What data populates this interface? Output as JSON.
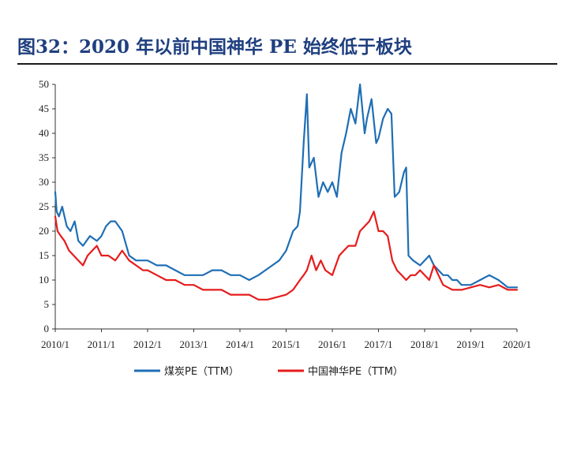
{
  "title": "图32：2020 年以前中国神华 PE 始终低于板块",
  "chart_data": {
    "type": "line",
    "title": "图32：2020 年以前中国神华 PE 始终低于板块",
    "xlabel": "",
    "ylabel": "",
    "ylim": [
      0,
      50
    ],
    "xlim": [
      2010.0,
      2020.0
    ],
    "yticks": [
      "0",
      "5",
      "10",
      "15",
      "20",
      "25",
      "30",
      "35",
      "40",
      "45",
      "50"
    ],
    "xticks": [
      "2010/1",
      "2011/1",
      "2012/1",
      "2013/1",
      "2014/1",
      "2015/1",
      "2016/1",
      "2017/1",
      "2018/1",
      "2019/1",
      "2020/1"
    ],
    "grid": false,
    "legend_position": "bottom",
    "series": [
      {
        "name": "煤炭PE（TTM）",
        "color": "#1f6eb4",
        "x": [
          2010.0,
          2010.03,
          2010.08,
          2010.15,
          2010.25,
          2010.33,
          2010.42,
          2010.5,
          2010.6,
          2010.75,
          2010.9,
          2011.0,
          2011.1,
          2011.2,
          2011.3,
          2011.45,
          2011.6,
          2011.75,
          2011.9,
          2012.0,
          2012.2,
          2012.4,
          2012.6,
          2012.8,
          2013.0,
          2013.2,
          2013.4,
          2013.6,
          2013.8,
          2014.0,
          2014.2,
          2014.4,
          2014.55,
          2014.7,
          2014.85,
          2015.0,
          2015.15,
          2015.25,
          2015.3,
          2015.38,
          2015.45,
          2015.5,
          2015.6,
          2015.7,
          2015.8,
          2015.9,
          2016.0,
          2016.1,
          2016.2,
          2016.3,
          2016.4,
          2016.5,
          2016.6,
          2016.7,
          2016.75,
          2016.85,
          2016.95,
          2017.0,
          2017.1,
          2017.2,
          2017.28,
          2017.35,
          2017.45,
          2017.55,
          2017.6,
          2017.65,
          2017.75,
          2017.9,
          2018.0,
          2018.1,
          2018.2,
          2018.3,
          2018.4,
          2018.5,
          2018.6,
          2018.7,
          2018.8,
          2018.9,
          2019.0,
          2019.2,
          2019.4,
          2019.6,
          2019.8,
          2020.0
        ],
        "values": [
          28,
          24,
          23,
          25,
          21,
          20,
          22,
          18,
          17,
          19,
          18,
          19,
          21,
          22,
          22,
          20,
          15,
          14,
          14,
          14,
          13,
          13,
          12,
          11,
          11,
          11,
          12,
          12,
          11,
          11,
          10,
          11,
          12,
          13,
          14,
          16,
          20,
          21,
          24,
          38,
          48,
          33,
          35,
          27,
          30,
          28,
          30,
          27,
          36,
          40,
          45,
          42,
          50,
          40,
          43,
          47,
          38,
          39,
          43,
          45,
          44,
          27,
          28,
          32,
          33,
          15,
          14,
          13,
          14,
          15,
          13,
          12,
          11,
          11,
          10,
          10,
          9,
          9,
          9,
          10,
          11,
          10,
          8.5,
          8.5
        ]
      },
      {
        "name": "中国神华PE（TTM）",
        "color": "#e61c1c",
        "x": [
          2010.0,
          2010.05,
          2010.12,
          2010.2,
          2010.3,
          2010.4,
          2010.5,
          2010.6,
          2010.7,
          2010.8,
          2010.9,
          2011.0,
          2011.15,
          2011.3,
          2011.45,
          2011.6,
          2011.75,
          2011.9,
          2012.0,
          2012.2,
          2012.4,
          2012.6,
          2012.8,
          2013.0,
          2013.2,
          2013.4,
          2013.6,
          2013.8,
          2014.0,
          2014.2,
          2014.4,
          2014.6,
          2014.8,
          2015.0,
          2015.15,
          2015.3,
          2015.38,
          2015.45,
          2015.55,
          2015.65,
          2015.75,
          2015.85,
          2016.0,
          2016.15,
          2016.25,
          2016.35,
          2016.5,
          2016.6,
          2016.7,
          2016.8,
          2016.9,
          2017.0,
          2017.1,
          2017.2,
          2017.3,
          2017.4,
          2017.5,
          2017.6,
          2017.7,
          2017.8,
          2017.9,
          2018.0,
          2018.1,
          2018.2,
          2018.3,
          2018.4,
          2018.5,
          2018.6,
          2018.8,
          2019.0,
          2019.2,
          2019.4,
          2019.6,
          2019.8,
          2020.0
        ],
        "values": [
          23,
          20,
          19,
          18,
          16,
          15,
          14,
          13,
          15,
          16,
          17,
          15,
          15,
          14,
          16,
          14,
          13,
          12,
          12,
          11,
          10,
          10,
          9,
          9,
          8,
          8,
          8,
          7,
          7,
          7,
          6,
          6,
          6.5,
          7,
          8,
          10,
          11,
          12,
          15,
          12,
          14,
          12,
          11,
          15,
          16,
          17,
          17,
          20,
          21,
          22,
          24,
          20,
          20,
          19,
          14,
          12,
          11,
          10,
          11,
          11,
          12,
          11,
          10,
          13,
          11,
          9,
          8.5,
          8,
          8,
          8.5,
          9,
          8.5,
          9,
          8,
          8
        ]
      }
    ]
  }
}
